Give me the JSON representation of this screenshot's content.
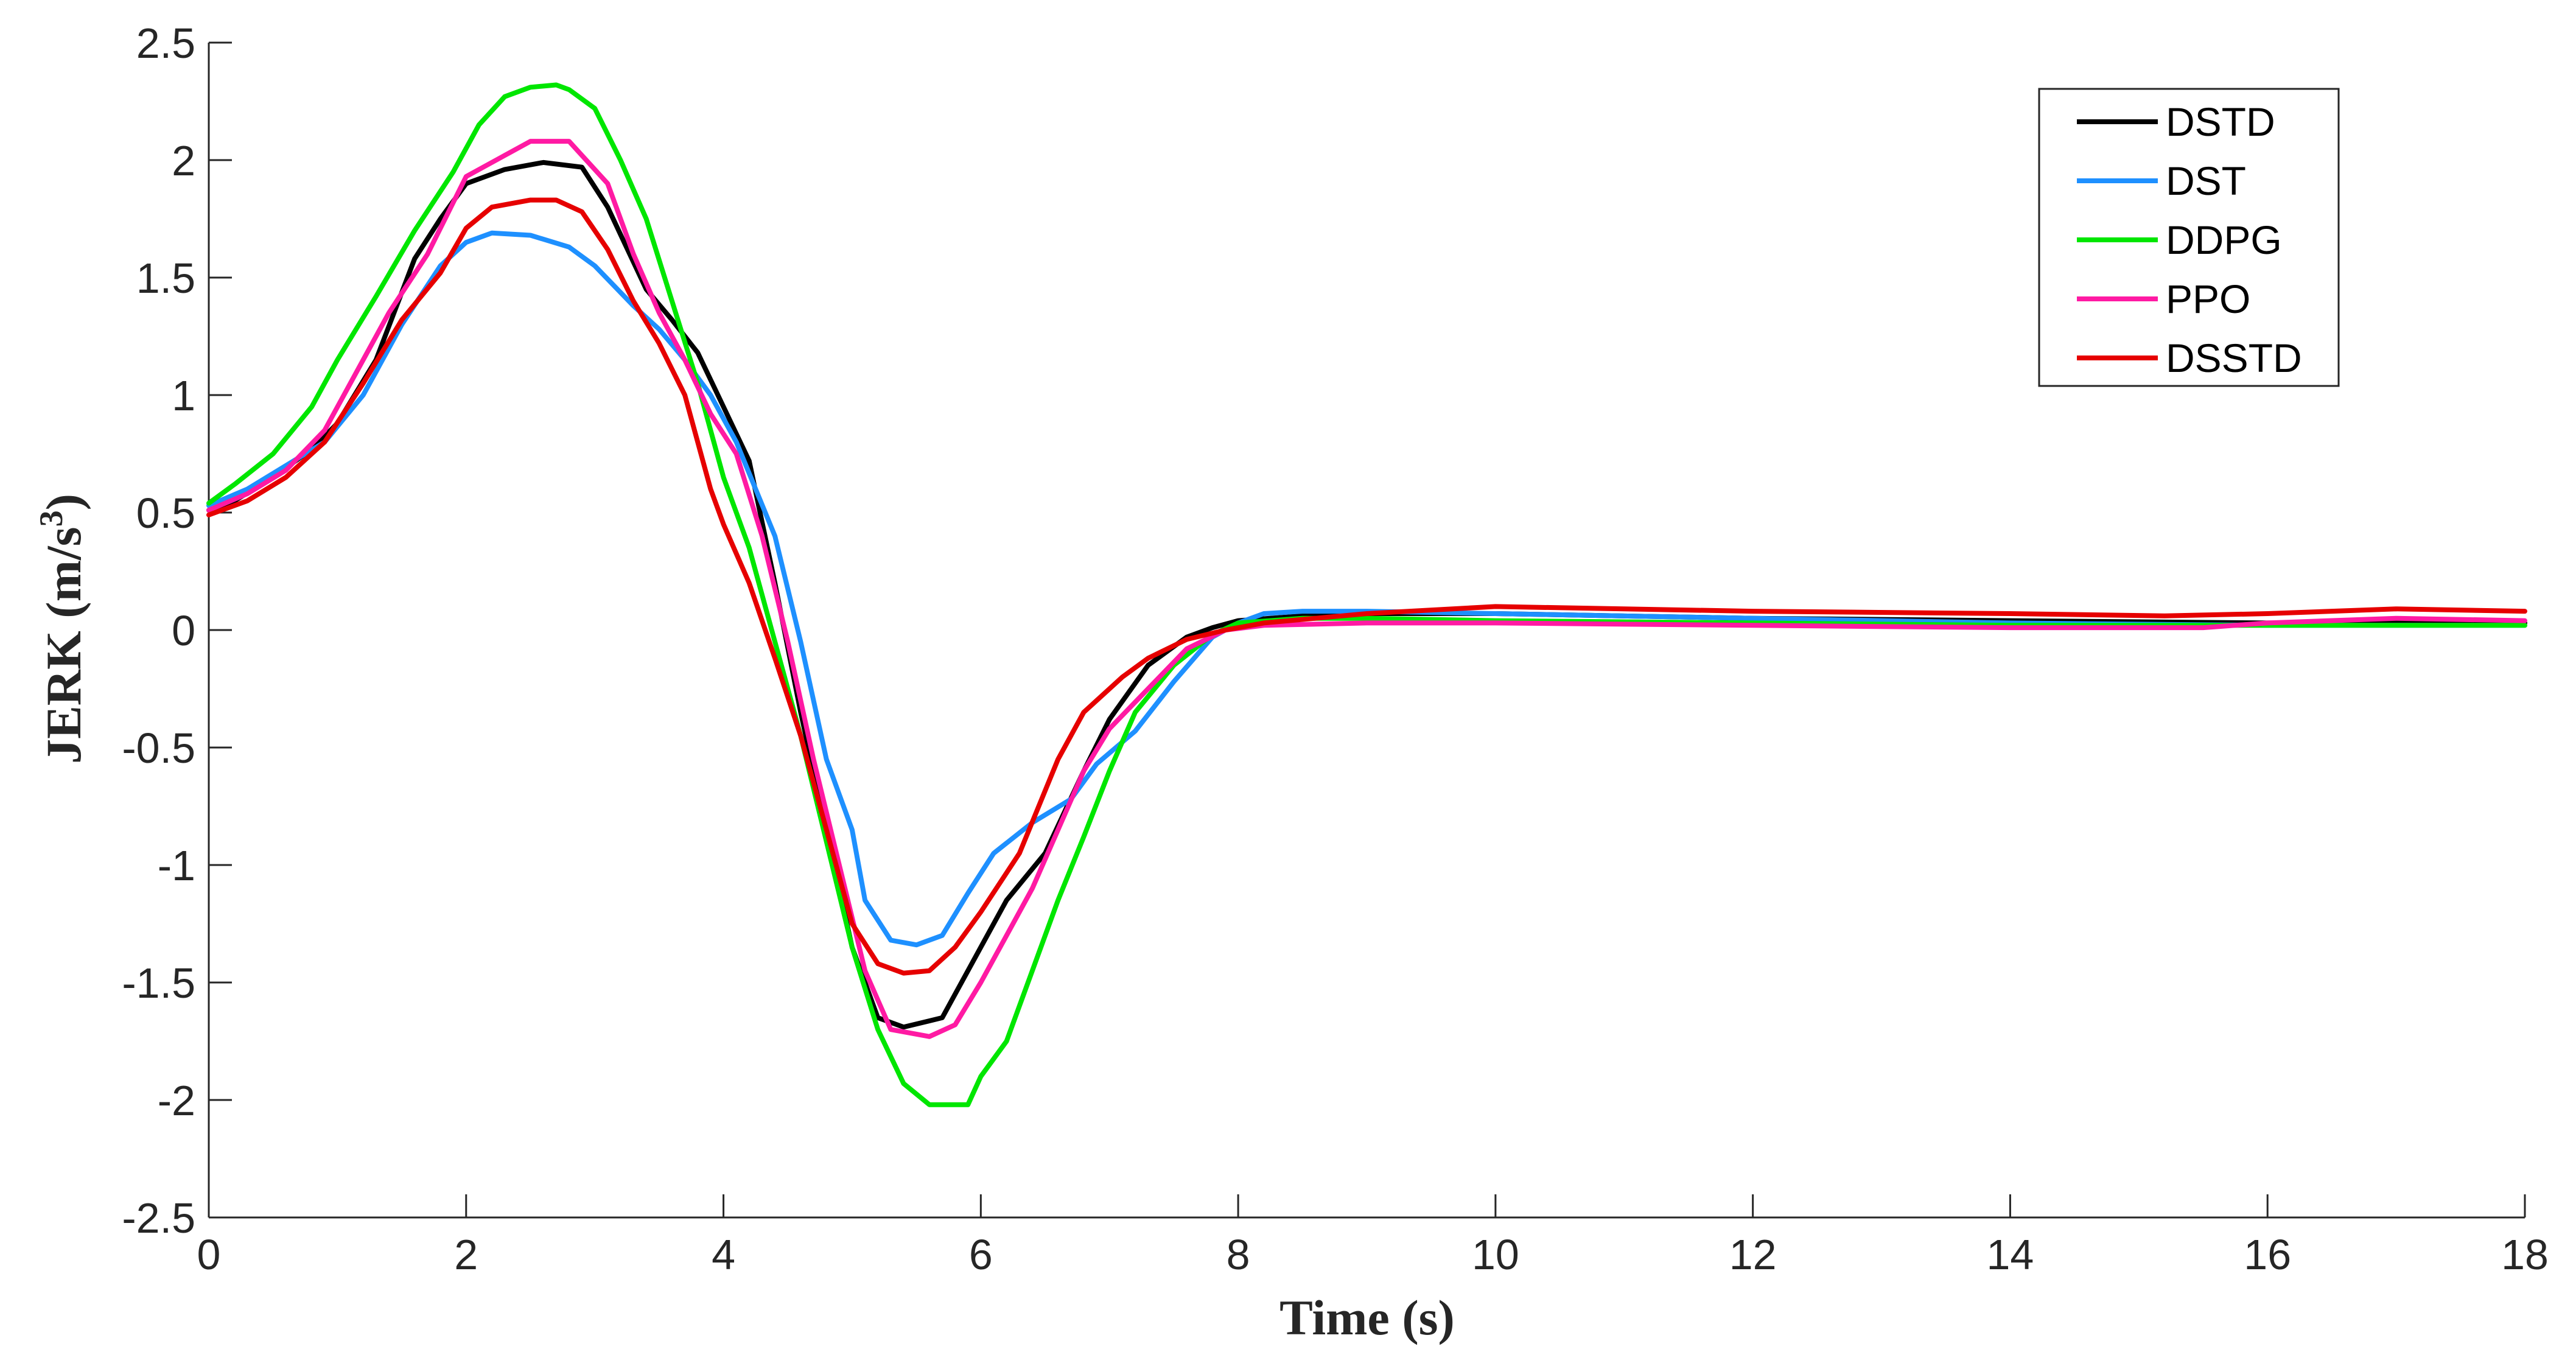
{
  "chart_data": {
    "type": "line",
    "title": "",
    "xlabel": "Time (s)",
    "ylabel_main": "JERK (m/s",
    "ylabel_sup": "3",
    "ylabel_close": ")",
    "xlim": [
      0,
      18
    ],
    "ylim": [
      -2.5,
      2.5
    ],
    "grid": false,
    "legend_position": "top-right",
    "xticks": [
      0,
      2,
      4,
      6,
      8,
      10,
      12,
      14,
      16,
      18
    ],
    "xtick_labels": [
      "0",
      "2",
      "4",
      "6",
      "8",
      "10",
      "12",
      "14",
      "16",
      "18"
    ],
    "yticks": [
      2.5,
      2,
      1.5,
      1,
      0.5,
      0,
      -0.5,
      -1,
      -1.5,
      -2,
      -2.5
    ],
    "ytick_labels": [
      "2.5",
      "2",
      "1.5",
      "1",
      "0.5",
      "0",
      "-0.5",
      "-1",
      "-1.5",
      "-2",
      "-2.5"
    ],
    "series": [
      {
        "name": "DSTD",
        "color": "#000000",
        "points": [
          [
            0,
            0.51
          ],
          [
            0.2,
            0.55
          ],
          [
            0.5,
            0.65
          ],
          [
            0.8,
            0.77
          ],
          [
            1.0,
            0.88
          ],
          [
            1.3,
            1.15
          ],
          [
            1.6,
            1.58
          ],
          [
            1.8,
            1.75
          ],
          [
            2.0,
            1.9
          ],
          [
            2.3,
            1.96
          ],
          [
            2.6,
            1.99
          ],
          [
            2.9,
            1.97
          ],
          [
            3.1,
            1.8
          ],
          [
            3.4,
            1.45
          ],
          [
            3.6,
            1.32
          ],
          [
            3.8,
            1.18
          ],
          [
            4.0,
            0.95
          ],
          [
            4.2,
            0.72
          ],
          [
            4.4,
            0.2
          ],
          [
            4.6,
            -0.35
          ],
          [
            4.8,
            -0.85
          ],
          [
            5.0,
            -1.35
          ],
          [
            5.2,
            -1.65
          ],
          [
            5.4,
            -1.69
          ],
          [
            5.7,
            -1.65
          ],
          [
            6.0,
            -1.35
          ],
          [
            6.2,
            -1.15
          ],
          [
            6.5,
            -0.95
          ],
          [
            6.8,
            -0.6
          ],
          [
            7.0,
            -0.38
          ],
          [
            7.3,
            -0.15
          ],
          [
            7.6,
            -0.03
          ],
          [
            7.8,
            0.01
          ],
          [
            8.0,
            0.04
          ],
          [
            8.5,
            0.06
          ],
          [
            9.0,
            0.07
          ],
          [
            9.5,
            0.07
          ],
          [
            10,
            0.07
          ],
          [
            12,
            0.05
          ],
          [
            14,
            0.04
          ],
          [
            16,
            0.03
          ],
          [
            18,
            0.03
          ]
        ]
      },
      {
        "name": "DST",
        "color": "#1e90ff",
        "points": [
          [
            0,
            0.53
          ],
          [
            0.3,
            0.6
          ],
          [
            0.6,
            0.7
          ],
          [
            0.9,
            0.8
          ],
          [
            1.2,
            1.0
          ],
          [
            1.5,
            1.3
          ],
          [
            1.8,
            1.55
          ],
          [
            2.0,
            1.65
          ],
          [
            2.2,
            1.69
          ],
          [
            2.5,
            1.68
          ],
          [
            2.8,
            1.63
          ],
          [
            3.0,
            1.55
          ],
          [
            3.3,
            1.38
          ],
          [
            3.5,
            1.28
          ],
          [
            3.7,
            1.15
          ],
          [
            3.9,
            1.0
          ],
          [
            4.1,
            0.8
          ],
          [
            4.4,
            0.4
          ],
          [
            4.6,
            -0.05
          ],
          [
            4.8,
            -0.55
          ],
          [
            5.0,
            -0.85
          ],
          [
            5.1,
            -1.15
          ],
          [
            5.3,
            -1.32
          ],
          [
            5.5,
            -1.34
          ],
          [
            5.7,
            -1.3
          ],
          [
            5.9,
            -1.12
          ],
          [
            6.1,
            -0.95
          ],
          [
            6.4,
            -0.82
          ],
          [
            6.7,
            -0.72
          ],
          [
            6.9,
            -0.57
          ],
          [
            7.2,
            -0.43
          ],
          [
            7.5,
            -0.22
          ],
          [
            7.8,
            -0.03
          ],
          [
            8.0,
            0.03
          ],
          [
            8.2,
            0.07
          ],
          [
            8.5,
            0.08
          ],
          [
            9,
            0.08
          ],
          [
            10,
            0.07
          ],
          [
            12,
            0.05
          ],
          [
            14,
            0.03
          ],
          [
            16,
            0.02
          ],
          [
            18,
            0.02
          ]
        ]
      },
      {
        "name": "DDPG",
        "color": "#00e600",
        "points": [
          [
            0,
            0.54
          ],
          [
            0.2,
            0.62
          ],
          [
            0.5,
            0.75
          ],
          [
            0.8,
            0.95
          ],
          [
            1.0,
            1.15
          ],
          [
            1.3,
            1.42
          ],
          [
            1.6,
            1.7
          ],
          [
            1.9,
            1.95
          ],
          [
            2.1,
            2.15
          ],
          [
            2.3,
            2.27
          ],
          [
            2.5,
            2.31
          ],
          [
            2.7,
            2.32
          ],
          [
            2.8,
            2.3
          ],
          [
            3.0,
            2.22
          ],
          [
            3.2,
            2.0
          ],
          [
            3.4,
            1.75
          ],
          [
            3.6,
            1.4
          ],
          [
            3.8,
            1.05
          ],
          [
            4.0,
            0.65
          ],
          [
            4.2,
            0.35
          ],
          [
            4.4,
            -0.05
          ],
          [
            4.6,
            -0.45
          ],
          [
            4.8,
            -0.9
          ],
          [
            5.0,
            -1.35
          ],
          [
            5.2,
            -1.7
          ],
          [
            5.4,
            -1.93
          ],
          [
            5.6,
            -2.02
          ],
          [
            5.9,
            -2.02
          ],
          [
            6.0,
            -1.9
          ],
          [
            6.2,
            -1.75
          ],
          [
            6.4,
            -1.45
          ],
          [
            6.6,
            -1.15
          ],
          [
            6.8,
            -0.88
          ],
          [
            7.0,
            -0.6
          ],
          [
            7.2,
            -0.35
          ],
          [
            7.5,
            -0.15
          ],
          [
            7.8,
            -0.02
          ],
          [
            8.0,
            0.03
          ],
          [
            8.5,
            0.05
          ],
          [
            9,
            0.05
          ],
          [
            10,
            0.04
          ],
          [
            12,
            0.03
          ],
          [
            14,
            0.02
          ],
          [
            16,
            0.02
          ],
          [
            18,
            0.02
          ]
        ]
      },
      {
        "name": "PPO",
        "color": "#ff1aa3",
        "points": [
          [
            0,
            0.51
          ],
          [
            0.3,
            0.58
          ],
          [
            0.6,
            0.68
          ],
          [
            0.9,
            0.85
          ],
          [
            1.2,
            1.15
          ],
          [
            1.4,
            1.35
          ],
          [
            1.7,
            1.6
          ],
          [
            2.0,
            1.93
          ],
          [
            2.3,
            2.02
          ],
          [
            2.5,
            2.08
          ],
          [
            2.8,
            2.08
          ],
          [
            3.1,
            1.9
          ],
          [
            3.3,
            1.6
          ],
          [
            3.5,
            1.35
          ],
          [
            3.7,
            1.15
          ],
          [
            3.9,
            0.92
          ],
          [
            4.1,
            0.75
          ],
          [
            4.3,
            0.4
          ],
          [
            4.5,
            -0.05
          ],
          [
            4.7,
            -0.55
          ],
          [
            4.9,
            -1.0
          ],
          [
            5.1,
            -1.45
          ],
          [
            5.3,
            -1.7
          ],
          [
            5.6,
            -1.73
          ],
          [
            5.8,
            -1.68
          ],
          [
            6.0,
            -1.5
          ],
          [
            6.2,
            -1.3
          ],
          [
            6.4,
            -1.1
          ],
          [
            6.6,
            -0.85
          ],
          [
            6.8,
            -0.6
          ],
          [
            7.0,
            -0.42
          ],
          [
            7.3,
            -0.25
          ],
          [
            7.6,
            -0.08
          ],
          [
            7.9,
            0.0
          ],
          [
            8.2,
            0.02
          ],
          [
            9,
            0.03
          ],
          [
            10,
            0.03
          ],
          [
            12,
            0.02
          ],
          [
            14,
            0.01
          ],
          [
            15.5,
            0.01
          ],
          [
            16,
            0.03
          ],
          [
            17,
            0.05
          ],
          [
            18,
            0.04
          ]
        ]
      },
      {
        "name": "DSSTD",
        "color": "#e60000",
        "points": [
          [
            0,
            0.49
          ],
          [
            0.3,
            0.55
          ],
          [
            0.6,
            0.65
          ],
          [
            0.9,
            0.8
          ],
          [
            1.2,
            1.05
          ],
          [
            1.5,
            1.32
          ],
          [
            1.8,
            1.52
          ],
          [
            2.0,
            1.71
          ],
          [
            2.2,
            1.8
          ],
          [
            2.5,
            1.83
          ],
          [
            2.7,
            1.83
          ],
          [
            2.9,
            1.78
          ],
          [
            3.1,
            1.62
          ],
          [
            3.3,
            1.4
          ],
          [
            3.5,
            1.22
          ],
          [
            3.7,
            1.0
          ],
          [
            3.9,
            0.6
          ],
          [
            4.0,
            0.45
          ],
          [
            4.2,
            0.2
          ],
          [
            4.4,
            -0.12
          ],
          [
            4.6,
            -0.45
          ],
          [
            4.8,
            -0.85
          ],
          [
            5.0,
            -1.25
          ],
          [
            5.2,
            -1.42
          ],
          [
            5.4,
            -1.46
          ],
          [
            5.6,
            -1.45
          ],
          [
            5.8,
            -1.35
          ],
          [
            6.0,
            -1.2
          ],
          [
            6.3,
            -0.95
          ],
          [
            6.6,
            -0.55
          ],
          [
            6.8,
            -0.35
          ],
          [
            7.1,
            -0.2
          ],
          [
            7.3,
            -0.12
          ],
          [
            7.6,
            -0.04
          ],
          [
            7.9,
            0.0
          ],
          [
            8.2,
            0.03
          ],
          [
            8.6,
            0.05
          ],
          [
            9,
            0.07
          ],
          [
            10,
            0.1
          ],
          [
            11,
            0.09
          ],
          [
            12,
            0.08
          ],
          [
            14,
            0.07
          ],
          [
            15.2,
            0.06
          ],
          [
            16,
            0.07
          ],
          [
            17,
            0.09
          ],
          [
            18,
            0.08
          ]
        ]
      }
    ]
  }
}
